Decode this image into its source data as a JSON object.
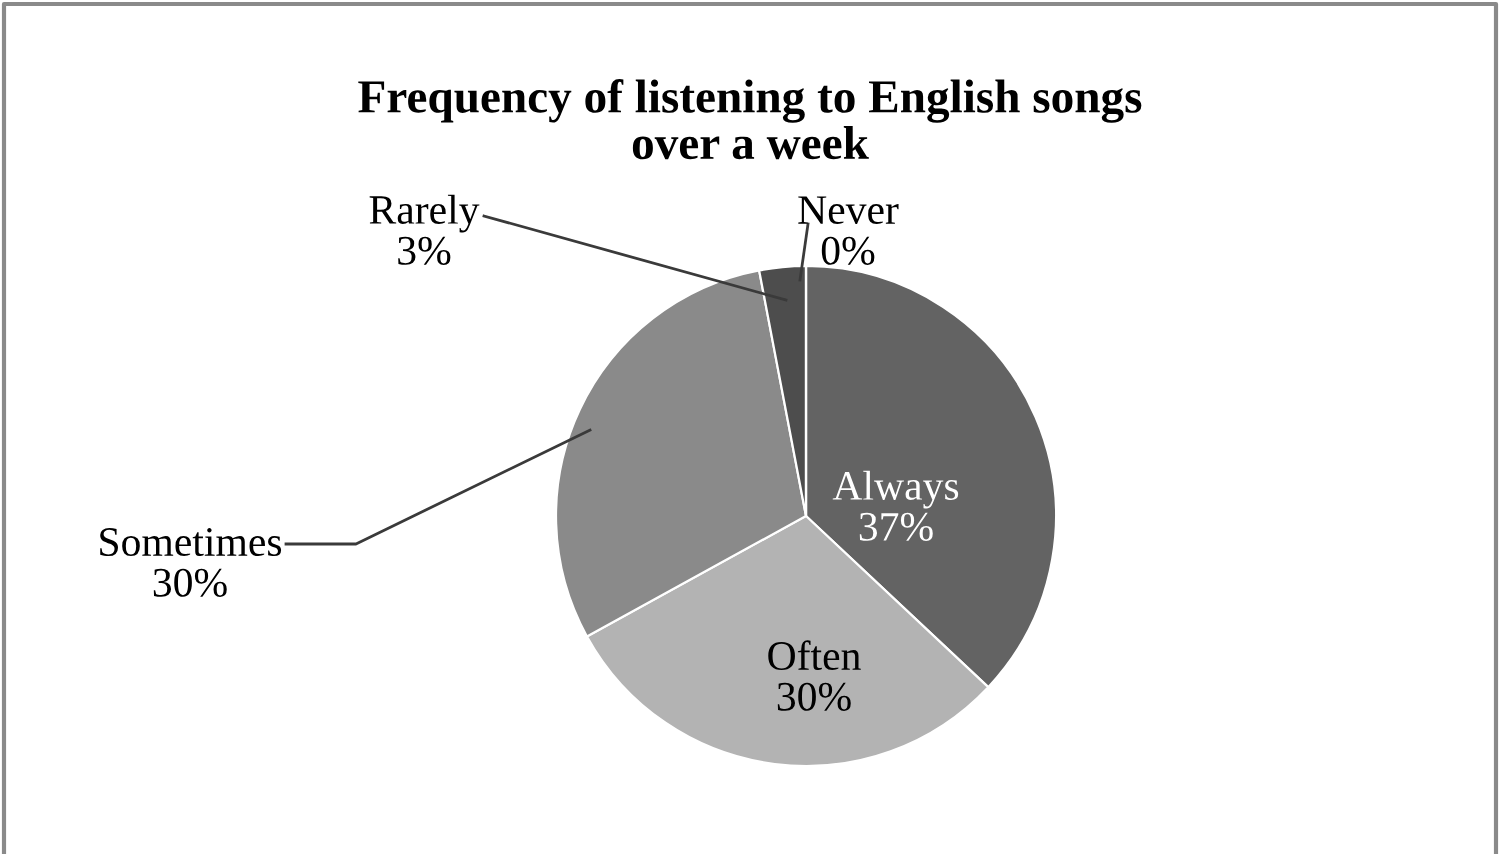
{
  "chart_data": {
    "type": "pie",
    "title": "Frequency of listening to English songs over a week",
    "categories": [
      "Always",
      "Often",
      "Sometimes",
      "Rarely",
      "Never"
    ],
    "values": [
      37,
      30,
      30,
      3,
      0
    ],
    "value_labels": [
      "37%",
      "30%",
      "30%",
      "3%",
      "0%"
    ],
    "colors": [
      "#636363",
      "#b3b3b3",
      "#8a8a8a",
      "#4d4d4d",
      "#3a3a3a"
    ],
    "legend": false
  }
}
